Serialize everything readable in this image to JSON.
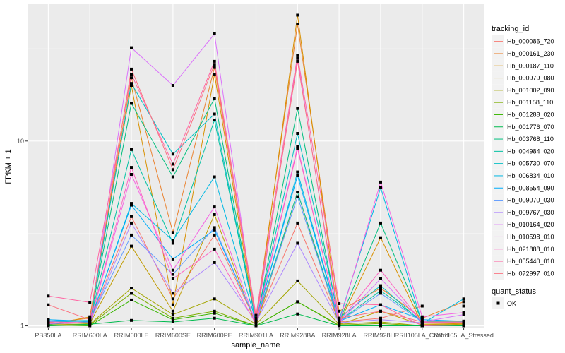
{
  "chart_data": {
    "type": "line",
    "xlabel": "sample_name",
    "ylabel": "FPKM + 1",
    "y_scale": "log10",
    "ylim": [
      0.97,
      55
    ],
    "y_ticks": [
      1,
      10
    ],
    "y_tick_labels": [
      "1",
      "10"
    ],
    "grid": true,
    "legend_position": "right",
    "categories": [
      "PB350LA",
      "RRIM600LA",
      "RRIM600LE",
      "RRIM600SE",
      "RRIM600PE",
      "RRIM901LA",
      "RRIM928BA",
      "RRIM928LA",
      "RRIM928LE",
      "RRII105LA_Control",
      "RRII105LA_Stressed"
    ],
    "legend_title": "tracking_id",
    "point_legend_title": "quant_status",
    "point_legend_label": "OK",
    "series": [
      {
        "name": "Hb_000086_720",
        "color": "#F8766D",
        "values": [
          1.02,
          1.05,
          3.9,
          1.4,
          3.1,
          1.05,
          3.6,
          1.05,
          1.1,
          1.28,
          1.28
        ]
      },
      {
        "name": "Hb_000161_230",
        "color": "#EA8331",
        "values": [
          1.04,
          1.1,
          22.0,
          3.2,
          25.0,
          1.1,
          43.0,
          1.2,
          1.6,
          1.1,
          1.35
        ]
      },
      {
        "name": "Hb_000187_110",
        "color": "#D89000",
        "values": [
          1.01,
          1.12,
          20.0,
          1.3,
          23.0,
          1.02,
          48.0,
          1.03,
          3.0,
          1.02,
          1.03
        ]
      },
      {
        "name": "Hb_000979_080",
        "color": "#C09B00",
        "values": [
          1.0,
          1.03,
          2.7,
          1.2,
          4.0,
          1.0,
          5.3,
          1.02,
          1.2,
          1.01,
          1.02
        ]
      },
      {
        "name": "Hb_001002_090",
        "color": "#A3A500",
        "values": [
          1.02,
          1.02,
          1.6,
          1.15,
          1.4,
          1.02,
          1.75,
          1.02,
          1.05,
          1.0,
          1.0
        ]
      },
      {
        "name": "Hb_001158_110",
        "color": "#7CAE00",
        "values": [
          1.0,
          1.01,
          1.5,
          1.1,
          1.2,
          1.0,
          1.35,
          1.01,
          1.03,
          1.0,
          1.0
        ]
      },
      {
        "name": "Hb_001288_020",
        "color": "#39B600",
        "values": [
          1.01,
          1.0,
          1.38,
          1.08,
          1.17,
          1.0,
          1.35,
          1.0,
          1.0,
          1.0,
          1.0
        ]
      },
      {
        "name": "Hb_001776_070",
        "color": "#00BB4E",
        "values": [
          1.0,
          1.02,
          1.07,
          1.05,
          1.1,
          1.0,
          1.16,
          1.0,
          1.0,
          1.0,
          1.0
        ]
      },
      {
        "name": "Hb_003768_110",
        "color": "#00BF7D",
        "values": [
          1.02,
          1.05,
          16.0,
          6.4,
          17.0,
          1.02,
          15.0,
          1.05,
          3.6,
          1.05,
          1.05
        ]
      },
      {
        "name": "Hb_004984_020",
        "color": "#00C1A3",
        "values": [
          1.05,
          1.06,
          9.0,
          2.8,
          13.0,
          1.05,
          5.3,
          1.06,
          1.55,
          1.06,
          1.06
        ]
      },
      {
        "name": "Hb_005730_070",
        "color": "#00BFC4",
        "values": [
          1.06,
          1.07,
          20.5,
          8.5,
          14.0,
          1.04,
          11.0,
          1.1,
          1.65,
          1.04,
          1.04
        ]
      },
      {
        "name": "Hb_006834_010",
        "color": "#00B9E3",
        "values": [
          1.08,
          1.05,
          4.6,
          2.9,
          6.4,
          1.05,
          6.8,
          1.07,
          5.6,
          1.03,
          1.4
        ]
      },
      {
        "name": "Hb_008554_090",
        "color": "#00ADFA",
        "values": [
          1.08,
          1.06,
          4.5,
          2.3,
          3.3,
          1.06,
          6.5,
          1.06,
          1.3,
          1.08,
          1.06
        ]
      },
      {
        "name": "Hb_009070_030",
        "color": "#619CFF",
        "values": [
          1.06,
          1.06,
          3.1,
          1.9,
          3.4,
          1.05,
          5.0,
          1.05,
          1.5,
          1.05,
          1.05
        ]
      },
      {
        "name": "Hb_009767_030",
        "color": "#AE87FF",
        "values": [
          1.03,
          1.04,
          3.6,
          1.5,
          2.2,
          1.05,
          2.8,
          1.04,
          1.08,
          1.04,
          1.05
        ]
      },
      {
        "name": "Hb_010164_020",
        "color": "#DB72FB",
        "values": [
          1.03,
          1.04,
          32.0,
          20.0,
          38.0,
          1.03,
          28.0,
          1.04,
          1.8,
          1.05,
          1.15
        ]
      },
      {
        "name": "Hb_010598_010",
        "color": "#F564E3",
        "values": [
          1.03,
          1.04,
          6.6,
          2.0,
          4.4,
          1.03,
          9.3,
          1.04,
          6.0,
          1.12,
          1.18
        ]
      },
      {
        "name": "Hb_021888_010",
        "color": "#FF61C3",
        "values": [
          1.05,
          1.04,
          7.2,
          1.8,
          2.6,
          1.02,
          9.1,
          1.05,
          2.0,
          1.04,
          1.04
        ]
      },
      {
        "name": "Hb_055440_010",
        "color": "#FF67A4",
        "values": [
          1.45,
          1.34,
          23.0,
          7.5,
          27.0,
          1.14,
          29.0,
          1.32,
          1.3,
          1.0,
          1.01
        ]
      },
      {
        "name": "Hb_072997_010",
        "color": "#FC717F",
        "values": [
          1.3,
          1.08,
          24.5,
          7.0,
          26.0,
          1.08,
          27.0,
          1.1,
          1.2,
          1.05,
          1.05
        ]
      }
    ]
  }
}
